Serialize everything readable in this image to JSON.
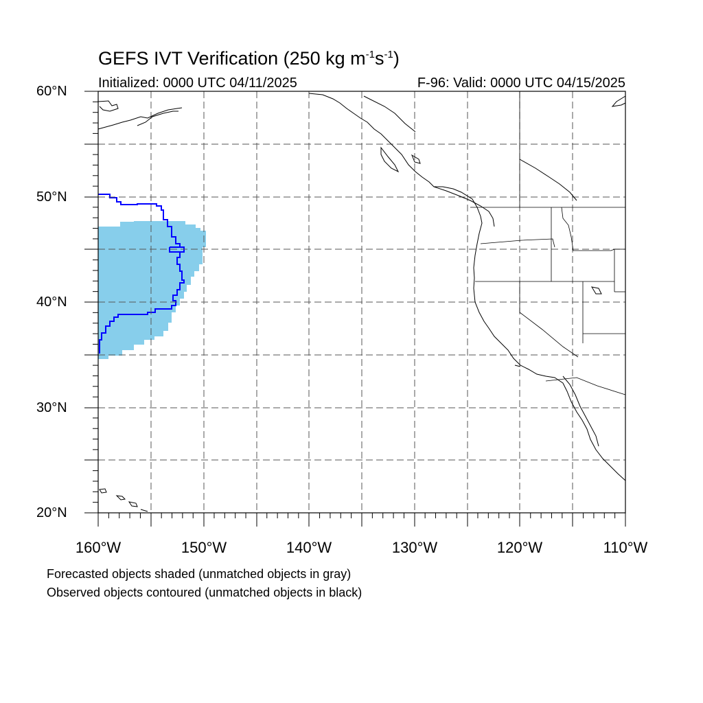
{
  "header": {
    "title_main": "GEFS IVT Verification (250 kg m",
    "title_exp1": "-1",
    "title_mid": "s",
    "title_exp2": "-1",
    "title_end": ")",
    "initialized": "Initialized: 0000 UTC 04/11/2025",
    "valid": "F-96: Valid: 0000 UTC 04/15/2025"
  },
  "axes": {
    "lat_labels": [
      "60°N",
      "50°N",
      "40°N",
      "30°N",
      "20°N"
    ],
    "lon_labels": [
      "160°W",
      "150°W",
      "140°W",
      "130°W",
      "120°W",
      "110°W"
    ],
    "lat_range": [
      20,
      60
    ],
    "lon_range": [
      -160,
      -110
    ]
  },
  "legend": {
    "line1": "Forecasted objects shaded (unmatched objects in gray)",
    "line2": "Observed objects contoured (unmatched objects in black)"
  },
  "colors": {
    "forecast_fill": "#87ceeb",
    "observed_contour": "#0000ff",
    "coastline": "#000000",
    "grid": "#555555"
  }
}
